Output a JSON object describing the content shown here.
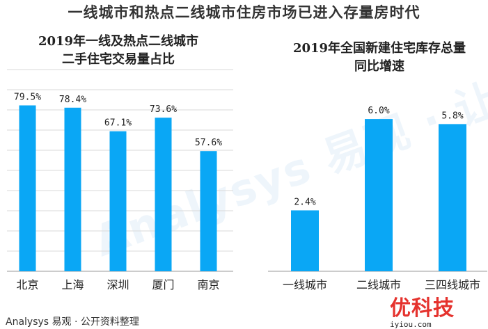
{
  "title": "一线城市和热点二线城市住房市场已进入存量房时代",
  "source": "Analysys 易观 · 公开资料整理",
  "watermark": {
    "brand": "优科技",
    "url": "iyiou.com",
    "background_text": "Analysys 易观 · 让大数据能"
  },
  "colors": {
    "bar": "#0aa7f5",
    "grid": "#d9d9d9",
    "text": "#222222"
  },
  "chart_data": [
    {
      "type": "bar",
      "title_lines": [
        "2019年一线及热点二线城市",
        "二手住宅交易量占比"
      ],
      "categories": [
        "北京",
        "上海",
        "深圳",
        "厦门",
        "南京"
      ],
      "values": [
        79.5,
        78.4,
        67.1,
        73.6,
        57.6
      ],
      "labels": [
        "79.5%",
        "78.4%",
        "67.1%",
        "73.6%",
        "57.6%"
      ],
      "ylim": [
        0,
        90
      ],
      "grid": true
    },
    {
      "type": "bar",
      "title_lines": [
        "2019年全国新建住宅库存总量",
        "同比增速"
      ],
      "categories": [
        "一线城市",
        "二线城市",
        "三四线城市"
      ],
      "values": [
        2.4,
        6.0,
        5.8
      ],
      "labels": [
        "2.4%",
        "6.0%",
        "5.8%"
      ],
      "ylim": [
        0,
        7.4
      ],
      "grid": false
    }
  ]
}
